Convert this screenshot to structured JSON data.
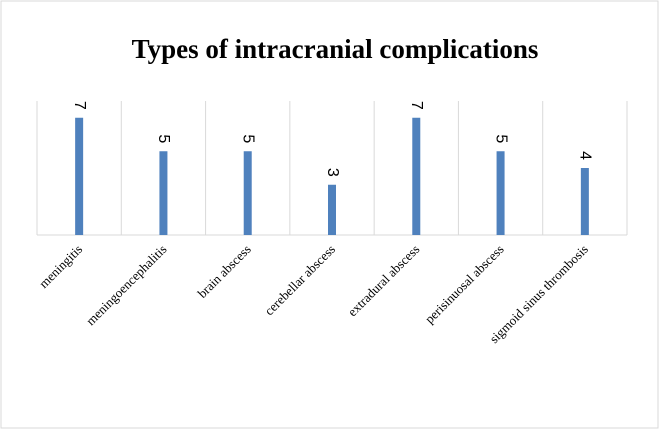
{
  "chart_data": {
    "type": "bar",
    "title": "Types of intracranial complications",
    "categories": [
      "meningitis",
      "meningoencephalitis",
      "brain abscess",
      "cerebellar abscess",
      "extradural abscess",
      "perisinuosal abscess",
      "sigmoid sinus thrombosis"
    ],
    "values": [
      7,
      5,
      5,
      3,
      7,
      5,
      4
    ],
    "color": "#4f81bd",
    "ylim": [
      0,
      8
    ]
  }
}
